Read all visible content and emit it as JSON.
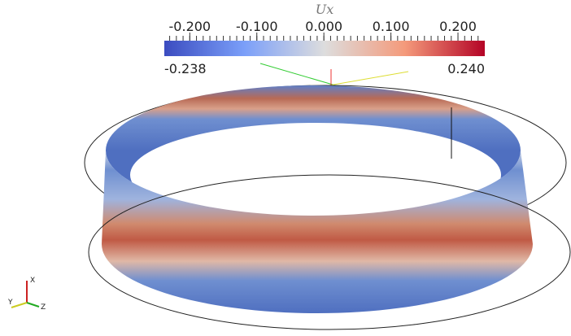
{
  "colorbar": {
    "title": "Ux",
    "ticks": [
      {
        "value": -0.2,
        "label": "-0.200"
      },
      {
        "value": -0.1,
        "label": "-0.100"
      },
      {
        "value": 0,
        "label": "0.000"
      },
      {
        "value": 0.1,
        "label": "0.100"
      },
      {
        "value": 0.2,
        "label": "0.200"
      }
    ],
    "range": [
      {
        "value": -0.238,
        "label": "-0.238"
      },
      {
        "value": 0.24,
        "label": "0.240"
      }
    ]
  },
  "axes": {
    "x": "X",
    "y": "Y",
    "z": "Z"
  }
}
